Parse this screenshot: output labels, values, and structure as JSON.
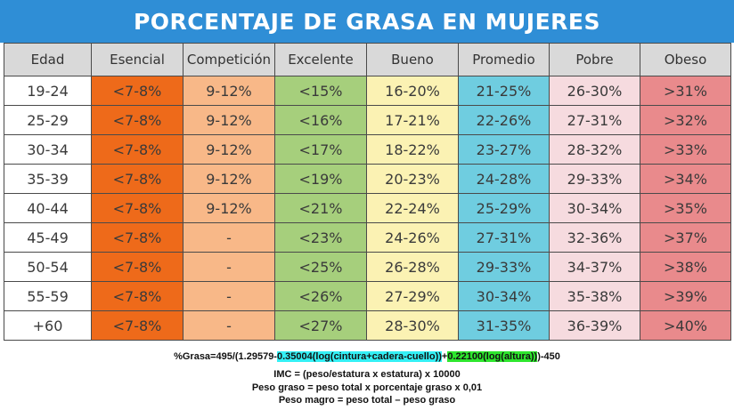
{
  "title": "PORCENTAJE DE GRASA EN MUJERES",
  "table": {
    "headers": [
      "Edad",
      "Esencial",
      "Competición",
      "Excelente",
      "Bueno",
      "Promedio",
      "Pobre",
      "Obeso"
    ],
    "column_colors": {
      "Edad": "#ffffff",
      "Esencial": "#ee6a1a",
      "Competición": "#f8b888",
      "Excelente": "#a6cf7c",
      "Bueno": "#fbf2b3",
      "Promedio": "#6fcde0",
      "Pobre": "#f6dbdf",
      "Obeso": "#e98a8c"
    },
    "rows": [
      [
        "19-24",
        "<7-8%",
        "9-12%",
        "<15%",
        "16-20%",
        "21-25%",
        "26-30%",
        ">31%"
      ],
      [
        "25-29",
        "<7-8%",
        "9-12%",
        "<16%",
        "17-21%",
        "22-26%",
        "27-31%",
        ">32%"
      ],
      [
        "30-34",
        "<7-8%",
        "9-12%",
        "<17%",
        "18-22%",
        "23-27%",
        "28-32%",
        ">33%"
      ],
      [
        "35-39",
        "<7-8%",
        "9-12%",
        "<19%",
        "20-23%",
        "24-28%",
        "29-33%",
        ">34%"
      ],
      [
        "40-44",
        "<7-8%",
        "9-12%",
        "<21%",
        "22-24%",
        "25-29%",
        "30-34%",
        ">35%"
      ],
      [
        "45-49",
        "<7-8%",
        "-",
        "<23%",
        "24-26%",
        "27-31%",
        "32-36%",
        ">37%"
      ],
      [
        "50-54",
        "<7-8%",
        "-",
        "<25%",
        "26-28%",
        "29-33%",
        "34-37%",
        ">38%"
      ],
      [
        "55-59",
        "<7-8%",
        "-",
        "<26%",
        "27-29%",
        "30-34%",
        "35-38%",
        ">39%"
      ],
      [
        "+60",
        "<7-8%",
        "-",
        "<27%",
        "28-30%",
        "31-35%",
        "36-39%",
        ">40%"
      ]
    ]
  },
  "formula": {
    "part1": "%Grasa=495/(1.29579-",
    "part2_cyan": "0.35004(log(cintura+cadera-cuello))",
    "part3": "+",
    "part4_green": "0.22100(log(altura))",
    "part5": ")-450",
    "highlight_cyan": "#34f0f5",
    "highlight_green": "#2ee62e"
  },
  "notes": [
    "IMC = (peso/estatura x estatura) x 10000",
    "Peso graso = peso total x porcentaje graso x 0,01",
    "Peso magro = peso total – peso graso"
  ]
}
